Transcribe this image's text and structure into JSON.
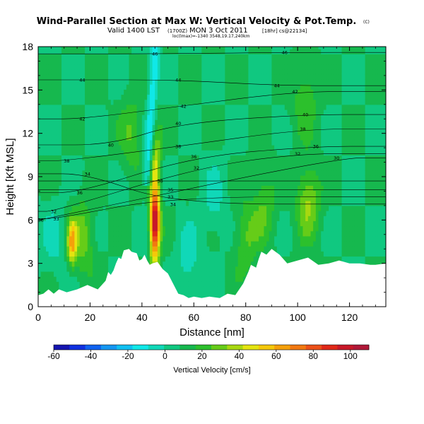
{
  "header": {
    "title": "Wind-Parallel Section at Max W: Vertical Velocity & Pot.Temp.",
    "copyright": "(C)",
    "valid_line": "Valid 1400 LST",
    "valid_utc": "(1700Z)",
    "valid_date": "MON 3 Oct 2011",
    "valid_run": "[18hr] cs@22134]",
    "meta_line": "loc(lmax)=-1340 3548,19.17,240km"
  },
  "colorbar": {
    "label": "Vertical Velocity [cm/s]",
    "ticks": [
      "-60",
      "-40",
      "-20",
      "0",
      "20",
      "40",
      "60",
      "80",
      "100"
    ],
    "colors": [
      "#1515b0",
      "#1030e0",
      "#0f62f0",
      "#1496f2",
      "#10c0f2",
      "#10e8e8",
      "#10d8b8",
      "#10c880",
      "#16b84e",
      "#2cc02c",
      "#66cc18",
      "#a8d810",
      "#e4e410",
      "#f5c80a",
      "#f5a00a",
      "#f27810",
      "#ec5018",
      "#e02818",
      "#c81828",
      "#b01838"
    ]
  },
  "chart_data": {
    "type": "heatmap",
    "title": "Wind-Parallel Section at Max W: Vertical Velocity & Pot.Temp.",
    "xlabel": "Distance [nm]",
    "ylabel": "Height [Kft MSL]",
    "xlim": [
      0,
      134
    ],
    "ylim": [
      0,
      18
    ],
    "x_ticks": [
      0,
      20,
      40,
      60,
      80,
      100,
      120
    ],
    "y_ticks": [
      0,
      3,
      6,
      9,
      12,
      15,
      18
    ],
    "x_tick_labels": [
      "0",
      "20",
      "40",
      "60",
      "80",
      "100",
      "120"
    ],
    "y_tick_labels": [
      "0",
      "3",
      "6",
      "9",
      "12",
      "15",
      "18"
    ],
    "field": "Vertical Velocity [cm/s]",
    "color_range": [
      -60,
      110
    ],
    "background_w": 8,
    "updraft": {
      "x_center": 45,
      "peak_w": 105,
      "core_height_range": [
        4,
        9
      ],
      "tilt_top_x": 47,
      "tilt_top_height": 17.5
    },
    "downdraft_beside_updraft": {
      "x_center": 42,
      "min_w": -15
    },
    "features": [
      {
        "x": 13,
        "y": 4.5,
        "w": 55
      },
      {
        "x": 17,
        "y": 4.8,
        "w": 30
      },
      {
        "x": 6,
        "y": 4.6,
        "w": -3
      },
      {
        "x": 58,
        "y": 3.0,
        "w": -6
      },
      {
        "x": 68,
        "y": 7.3,
        "w": -3
      },
      {
        "x": 104,
        "y": 7.3,
        "w": 35
      },
      {
        "x": 87,
        "y": 7.0,
        "w": 25
      },
      {
        "x": 36,
        "y": 12.0,
        "w": 25
      },
      {
        "x": 103,
        "y": 14.5,
        "w": 25
      },
      {
        "x": 80,
        "y": 4.8,
        "w": 25
      }
    ],
    "terrain_top_kft": [
      [
        0,
        0.8
      ],
      [
        2,
        0.9
      ],
      [
        4,
        1.2
      ],
      [
        6,
        0.9
      ],
      [
        8,
        1.2
      ],
      [
        11,
        1.0
      ],
      [
        15,
        1.2
      ],
      [
        19,
        1.5
      ],
      [
        23,
        1.2
      ],
      [
        26,
        1.8
      ],
      [
        27,
        2.4
      ],
      [
        28,
        2.2
      ],
      [
        29,
        2.5
      ],
      [
        30,
        3.0
      ],
      [
        31,
        3.4
      ],
      [
        32,
        3.3
      ],
      [
        33,
        3.9
      ],
      [
        35,
        4.0
      ],
      [
        36,
        3.8
      ],
      [
        38,
        3.7
      ],
      [
        39,
        3.2
      ],
      [
        40,
        3.3
      ],
      [
        41,
        3.6
      ],
      [
        42,
        3.2
      ],
      [
        43,
        2.9
      ],
      [
        44,
        3.0
      ],
      [
        46,
        3.1
      ],
      [
        48,
        2.6
      ],
      [
        50,
        2.3
      ],
      [
        52,
        1.6
      ],
      [
        54,
        0.9
      ],
      [
        56,
        0.8
      ],
      [
        58,
        0.6
      ],
      [
        60,
        0.7
      ],
      [
        63,
        0.6
      ],
      [
        66,
        0.7
      ],
      [
        70,
        0.6
      ],
      [
        73,
        0.9
      ],
      [
        76,
        0.8
      ],
      [
        79,
        1.6
      ],
      [
        81,
        2.4
      ],
      [
        82,
        2.9
      ],
      [
        84,
        2.7
      ],
      [
        85,
        3.3
      ],
      [
        86,
        3.8
      ],
      [
        88,
        3.6
      ],
      [
        90,
        4.0
      ],
      [
        93,
        3.6
      ],
      [
        96,
        3.0
      ],
      [
        100,
        3.2
      ],
      [
        104,
        3.4
      ],
      [
        108,
        2.9
      ],
      [
        112,
        3.0
      ],
      [
        116,
        3.2
      ],
      [
        120,
        3.0
      ],
      [
        124,
        3.0
      ],
      [
        128,
        2.9
      ],
      [
        130,
        2.9
      ],
      [
        134,
        3.0
      ]
    ],
    "theta_contours": [
      {
        "level": 30,
        "label": "30",
        "labels": [
          [
            1,
            6.0
          ],
          [
            115,
            10.3
          ]
        ]
      },
      {
        "level": 30,
        "label": "30",
        "labels": [
          [
            47,
            8.7
          ]
        ]
      },
      {
        "level": 32,
        "label": "32",
        "labels": [
          [
            6,
            6.6
          ],
          [
            61,
            9.6
          ],
          [
            100,
            10.6
          ]
        ]
      },
      {
        "level": 33,
        "label": "33",
        "labels": [
          [
            7,
            6.1
          ],
          [
            51,
            7.6
          ]
        ]
      },
      {
        "level": 34,
        "label": "34",
        "labels": [
          [
            19,
            9.2
          ],
          [
            52,
            7.1
          ]
        ]
      },
      {
        "level": 35,
        "label": "35",
        "labels": [
          [
            51,
            8.1
          ]
        ]
      },
      {
        "level": 36,
        "label": "36",
        "labels": [
          [
            16,
            7.9
          ],
          [
            60,
            10.4
          ],
          [
            107,
            11.1
          ]
        ]
      },
      {
        "level": 38,
        "label": "38",
        "labels": [
          [
            11,
            10.1
          ],
          [
            54,
            11.1
          ],
          [
            102,
            12.3
          ]
        ]
      },
      {
        "level": 40,
        "label": "40",
        "labels": [
          [
            28,
            11.2
          ],
          [
            54,
            12.7
          ],
          [
            103,
            13.3
          ]
        ]
      },
      {
        "level": 42,
        "label": "42",
        "labels": [
          [
            17,
            13.0
          ],
          [
            56,
            13.9
          ],
          [
            99,
            14.9
          ]
        ]
      },
      {
        "level": 44,
        "label": "44",
        "labels": [
          [
            17,
            15.7
          ],
          [
            54,
            15.7
          ],
          [
            92,
            15.3
          ]
        ]
      },
      {
        "level": 46,
        "label": "46",
        "labels": [
          [
            45,
            17.5
          ],
          [
            95,
            17.6
          ]
        ]
      }
    ]
  }
}
